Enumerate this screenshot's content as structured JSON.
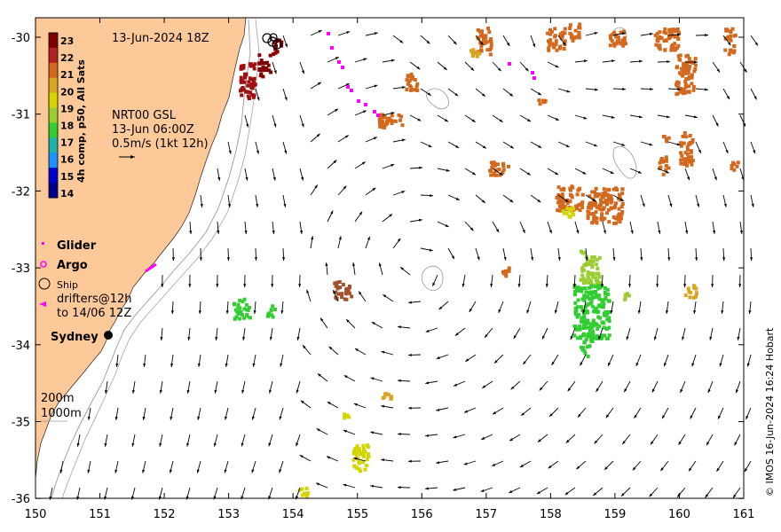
{
  "map": {
    "date_title": "13-Jun-2024 18Z",
    "product_lines": [
      "NRT00 GSL",
      "13-Jun 06:00Z",
      "0.5m/s (1kt 12h)"
    ],
    "colorbar": {
      "title": "4h comp, p50, All Sats",
      "labels": [
        "23",
        "22",
        "21",
        "20",
        "19",
        "18",
        "17",
        "16",
        "15",
        "14"
      ],
      "colors": [
        "#7f0000",
        "#b22222",
        "#d2691e",
        "#daa520",
        "#d4d400",
        "#9acd32",
        "#32cd32",
        "#20b2aa",
        "#1e90ff",
        "#0000cd",
        "#00008b"
      ]
    },
    "legend": {
      "glider": "Glider",
      "argo": "Argo",
      "ship": "Ship",
      "drifters_line1": "drifters@12h",
      "drifters_line2": "to 14/06 12Z"
    },
    "place_label": "Sydney",
    "isobath_labels": [
      "200m",
      "1000m"
    ],
    "credit": "© IMOS 16-Jun-2024 16:24 Hobart",
    "x_ticks": [
      "150",
      "151",
      "152",
      "153",
      "154",
      "155",
      "156",
      "157",
      "158",
      "159",
      "160",
      "161"
    ],
    "y_ticks": [
      "-30",
      "-31",
      "-32",
      "-33",
      "-34",
      "-35",
      "-36"
    ],
    "colors": {
      "land": "#fdc998",
      "arrow": "#000000",
      "glider": "#ff00ff",
      "isobath": "#888888"
    }
  }
}
